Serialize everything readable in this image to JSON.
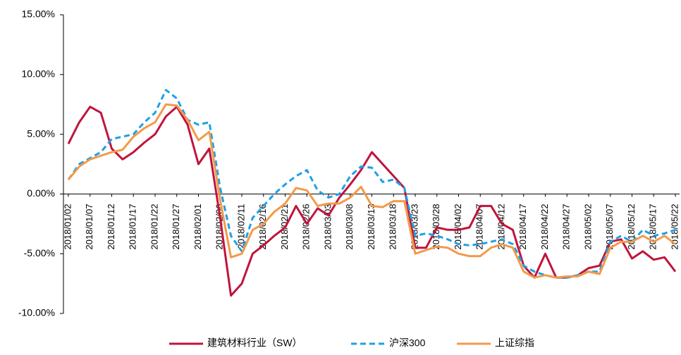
{
  "chart_data": {
    "type": "line",
    "categories": [
      "2018/01/02",
      null,
      "2018/01/07",
      null,
      "2018/01/12",
      null,
      "2018/01/17",
      null,
      "2018/01/22",
      null,
      "2018/01/27",
      null,
      "2018/02/01",
      null,
      "2018/02/06",
      null,
      "2018/02/11",
      null,
      "2018/02/16",
      null,
      "2018/02/21",
      null,
      "2018/02/26",
      null,
      "2018/03/03",
      null,
      "2018/03/08",
      null,
      "2018/03/13",
      null,
      "2018/03/18",
      null,
      "2018/03/23",
      null,
      "2018/03/28",
      null,
      "2018/04/02",
      null,
      "2018/04/07",
      null,
      "2018/04/12",
      null,
      "2018/04/17",
      null,
      "2018/04/22",
      null,
      "2018/04/27",
      null,
      "2018/05/02",
      null,
      "2018/05/07",
      null,
      "2018/05/12",
      null,
      "2018/05/17",
      null,
      "2018/05/22"
    ],
    "series": [
      {
        "name": "建筑材料行业（SW）",
        "color": "#c0143c",
        "dash": false,
        "values": [
          4.2,
          6.0,
          7.3,
          6.8,
          3.8,
          2.9,
          3.5,
          4.3,
          5.0,
          6.5,
          7.3,
          5.8,
          2.5,
          3.8,
          -2.0,
          -8.5,
          -7.5,
          -5.0,
          -4.3,
          -3.5,
          -2.8,
          -1.0,
          -2.5,
          -1.2,
          -1.8,
          -0.3,
          0.8,
          2.0,
          3.5,
          2.5,
          1.5,
          0.5,
          -4.5,
          -4.5,
          -2.8,
          -3.0,
          -3.0,
          -2.8,
          -1.0,
          -1.0,
          -2.5,
          -3.0,
          -6.0,
          -7.0,
          -5.0,
          -7.0,
          -7.0,
          -6.8,
          -6.2,
          -6.0,
          -4.0,
          -3.8,
          -5.4,
          -4.8,
          -5.5,
          -5.3,
          -6.5
        ]
      },
      {
        "name": "沪深300",
        "color": "#1ea0e6",
        "dash": true,
        "values": [
          1.2,
          2.5,
          3.0,
          3.5,
          4.6,
          4.8,
          5.0,
          6.0,
          6.8,
          8.7,
          8.0,
          6.2,
          5.8,
          6.0,
          0.5,
          -3.5,
          -4.8,
          -2.0,
          -1.0,
          0.0,
          0.8,
          1.5,
          2.0,
          0.3,
          -0.3,
          0.0,
          1.5,
          2.3,
          2.2,
          1.0,
          1.2,
          0.5,
          -3.5,
          -3.3,
          -3.5,
          -3.8,
          -4.2,
          -4.3,
          -4.2,
          -4.0,
          -3.8,
          -4.2,
          -6.0,
          -6.5,
          -6.8,
          -7.0,
          -7.0,
          -6.8,
          -6.5,
          -6.5,
          -4.0,
          -3.5,
          -4.0,
          -3.0,
          -3.5,
          -3.3,
          -3.0
        ]
      },
      {
        "name": "上证综指",
        "color": "#f39a4a",
        "dash": false,
        "values": [
          1.2,
          2.3,
          2.9,
          3.2,
          3.5,
          3.7,
          4.8,
          5.5,
          6.0,
          7.5,
          7.4,
          6.2,
          4.5,
          5.2,
          -0.5,
          -5.3,
          -5.0,
          -3.0,
          -2.5,
          -1.5,
          -0.8,
          0.5,
          0.3,
          -1.0,
          -0.8,
          -0.8,
          -0.3,
          0.6,
          -1.0,
          -1.1,
          -0.6,
          -0.6,
          -5.0,
          -4.7,
          -4.4,
          -4.5,
          -5.0,
          -5.2,
          -5.2,
          -4.5,
          -4.2,
          -4.5,
          -6.5,
          -7.0,
          -6.8,
          -7.0,
          -6.9,
          -6.9,
          -6.5,
          -6.7,
          -4.5,
          -4.0,
          -4.0,
          -3.5,
          -4.0,
          -3.5,
          -4.2
        ]
      }
    ],
    "ylim": [
      -10,
      15
    ],
    "yticks": [
      {
        "value": -10,
        "label": "-10.00%"
      },
      {
        "value": -5,
        "label": "-5.00%"
      },
      {
        "value": 0,
        "label": "0.00%"
      },
      {
        "value": 5,
        "label": "5.00%"
      },
      {
        "value": 10,
        "label": "10.00%"
      },
      {
        "value": 15,
        "label": "15.00%"
      }
    ],
    "legend": "bottom"
  }
}
